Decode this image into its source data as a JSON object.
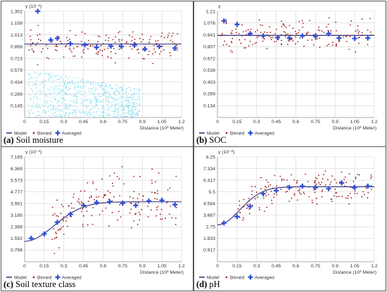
{
  "figure": {
    "panels": [
      {
        "letter": "(a)",
        "name": "Soil moisture"
      },
      {
        "letter": "(b)",
        "name": "SOC"
      },
      {
        "letter": "(c)",
        "name": "Soil texture class"
      },
      {
        "letter": "(d)",
        "name": "pH"
      }
    ]
  },
  "legend": {
    "model": "Model",
    "binned": "Binned",
    "averaged": "Averaged"
  },
  "colors": {
    "model": "#2a2a7a",
    "binned": "#a01818",
    "averaged": "#2e4fd6",
    "grid": "#d4d4d4",
    "noise": "#35c8e8"
  },
  "chart_data": [
    {
      "type": "scatter",
      "title": "",
      "ylabel": "γ (10⁻¹)",
      "xlabel": "Distance (10² Meter)",
      "x_ticks": [
        0,
        0.15,
        0.3,
        0.45,
        0.6,
        0.75,
        0.9,
        1.05,
        1.2
      ],
      "y_ticks": [
        0,
        0.145,
        0.289,
        0.434,
        0.579,
        0.723,
        0.868,
        1.013,
        1.158,
        1.302
      ],
      "y_tick_labels": [
        "",
        "0.145",
        "0.289",
        "0.434",
        "0.579",
        "0.723",
        "0.868",
        "1.013",
        "1.158",
        "1.302"
      ],
      "xlim": [
        0,
        1.2
      ],
      "ylim": [
        0,
        1.302
      ],
      "grid": true,
      "legend": "bottom-left",
      "model": {
        "kind": "flat",
        "nugget": 0.9,
        "sill": 0.9,
        "range": 0.1
      },
      "binned_spread": {
        "x_start": 0.02,
        "x_end": 1.18,
        "count": 170,
        "y_center": 0.88,
        "y_spread": 0.13,
        "seed": 11
      },
      "averaged": [
        {
          "x": 0.1,
          "y": 1.302
        },
        {
          "x": 0.2,
          "y": 0.95
        },
        {
          "x": 0.25,
          "y": 0.97
        },
        {
          "x": 0.35,
          "y": 0.905
        },
        {
          "x": 0.46,
          "y": 0.89
        },
        {
          "x": 0.55,
          "y": 0.86
        },
        {
          "x": 0.66,
          "y": 0.875
        },
        {
          "x": 0.74,
          "y": 0.87
        },
        {
          "x": 0.84,
          "y": 0.885
        },
        {
          "x": 0.92,
          "y": 0.84
        },
        {
          "x": 1.03,
          "y": 0.87
        },
        {
          "x": 1.15,
          "y": 0.85
        }
      ]
    },
    {
      "type": "scatter",
      "title": "",
      "ylabel": "γ",
      "xlabel": "Distance (10² Meter)",
      "x_ticks": [
        0,
        0.15,
        0.3,
        0.45,
        0.6,
        0.75,
        0.9,
        1.05,
        1.2
      ],
      "y_ticks": [
        0,
        0.134,
        0.269,
        0.403,
        0.538,
        0.672,
        0.807,
        0.941,
        1.076,
        1.21
      ],
      "y_tick_labels": [
        "",
        "0.134",
        "0.269",
        "0.403",
        "0.538",
        "0.672",
        "0.807",
        "0.941",
        "1.076",
        "1.21"
      ],
      "xlim": [
        0,
        1.2
      ],
      "ylim": [
        0,
        1.21
      ],
      "grid": true,
      "legend": "bottom-left",
      "model": {
        "kind": "flat",
        "nugget": 0.935,
        "sill": 0.935,
        "range": 0.1
      },
      "binned_spread": {
        "x_start": 0.02,
        "x_end": 1.18,
        "count": 175,
        "y_center": 0.94,
        "y_spread": 0.13,
        "seed": 23
      },
      "averaged": [
        {
          "x": 0.05,
          "y": 1.1
        },
        {
          "x": 0.15,
          "y": 1.06
        },
        {
          "x": 0.25,
          "y": 0.955
        },
        {
          "x": 0.35,
          "y": 0.93
        },
        {
          "x": 0.46,
          "y": 0.91
        },
        {
          "x": 0.55,
          "y": 0.905
        },
        {
          "x": 0.65,
          "y": 0.93
        },
        {
          "x": 0.75,
          "y": 0.925
        },
        {
          "x": 0.85,
          "y": 0.955
        },
        {
          "x": 0.93,
          "y": 0.905
        },
        {
          "x": 1.05,
          "y": 0.9
        },
        {
          "x": 1.15,
          "y": 0.905
        }
      ]
    },
    {
      "type": "scatter",
      "title": "",
      "ylabel": "γ (10⁻¹)",
      "xlabel": "Distance (10² Meter)",
      "x_ticks": [
        0,
        0.15,
        0.3,
        0.45,
        0.6,
        0.75,
        0.9,
        1.05,
        1.2
      ],
      "y_ticks": [
        0,
        0.796,
        1.592,
        2.388,
        3.185,
        3.981,
        4.777,
        5.573,
        6.369,
        7.165
      ],
      "y_tick_labels": [
        "",
        "0.796",
        "1.592",
        "2.388",
        "3.185",
        "3.981",
        "4.777",
        "5.573",
        "6.369",
        "7.165"
      ],
      "xlim": [
        0,
        1.2
      ],
      "ylim": [
        0,
        7.165
      ],
      "grid": true,
      "legend": "bottom-left",
      "model": {
        "kind": "gaussian",
        "nugget": 1.4,
        "sill": 4.1,
        "range": 0.55
      },
      "binned_spread": {
        "x_start": 0.2,
        "x_end": 1.18,
        "count": 160,
        "y_center": 4.0,
        "y_spread": 1.3,
        "seed": 37
      },
      "averaged": [
        {
          "x": 0.05,
          "y": 1.6
        },
        {
          "x": 0.15,
          "y": 1.9
        },
        {
          "x": 0.25,
          "y": 2.7
        },
        {
          "x": 0.35,
          "y": 3.25
        },
        {
          "x": 0.45,
          "y": 3.85
        },
        {
          "x": 0.55,
          "y": 4.05
        },
        {
          "x": 0.65,
          "y": 4.1
        },
        {
          "x": 0.75,
          "y": 4.0
        },
        {
          "x": 0.85,
          "y": 3.85
        },
        {
          "x": 0.95,
          "y": 4.15
        },
        {
          "x": 1.05,
          "y": 4.2
        },
        {
          "x": 1.15,
          "y": 3.9
        }
      ]
    },
    {
      "type": "scatter",
      "title": "",
      "ylabel": "γ (10⁻²)",
      "xlabel": "Distance (10² Meter)",
      "x_ticks": [
        0,
        0.15,
        0.3,
        0.45,
        0.6,
        0.75,
        0.9,
        1.05,
        1.2
      ],
      "y_ticks": [
        0,
        0.917,
        1.833,
        2.75,
        3.667,
        4.584,
        5.5,
        6.417,
        7.334,
        8.25
      ],
      "y_tick_labels": [
        "",
        "0.917",
        "1.833",
        "2.75",
        "3.667",
        "4.584",
        "5.5",
        "6.417",
        "7.334",
        "8.25"
      ],
      "xlim": [
        0,
        1.2
      ],
      "ylim": [
        0,
        8.25
      ],
      "grid": true,
      "legend": "bottom-left",
      "model": {
        "kind": "gaussian",
        "nugget": 2.9,
        "sill": 5.9,
        "range": 0.42
      },
      "binned_spread": {
        "x_start": 0.15,
        "x_end": 1.18,
        "count": 165,
        "y_center": 5.9,
        "y_spread": 1.0,
        "seed": 53
      },
      "averaged": [
        {
          "x": 0.05,
          "y": 3.05
        },
        {
          "x": 0.15,
          "y": 3.55
        },
        {
          "x": 0.25,
          "y": 4.35
        },
        {
          "x": 0.35,
          "y": 5.35
        },
        {
          "x": 0.45,
          "y": 5.6
        },
        {
          "x": 0.55,
          "y": 5.85
        },
        {
          "x": 0.65,
          "y": 5.95
        },
        {
          "x": 0.75,
          "y": 5.85
        },
        {
          "x": 0.85,
          "y": 5.75
        },
        {
          "x": 0.95,
          "y": 6.2
        },
        {
          "x": 1.05,
          "y": 5.85
        },
        {
          "x": 1.15,
          "y": 5.95
        }
      ]
    }
  ]
}
